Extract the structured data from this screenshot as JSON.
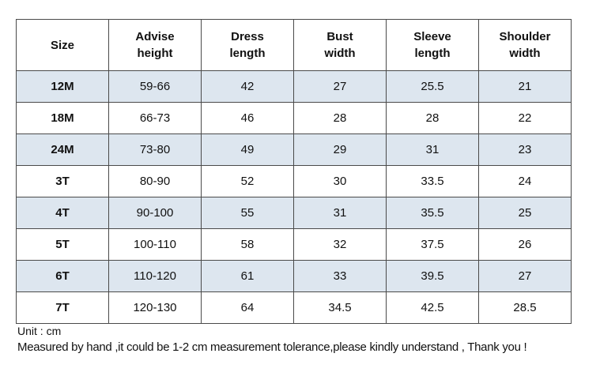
{
  "table": {
    "header": [
      "Size",
      "Advise height",
      "Dress length",
      "Bust width",
      "Sleeve length",
      "Shoulder width"
    ],
    "rows": [
      [
        "12M",
        "59-66",
        "42",
        "27",
        "25.5",
        "21"
      ],
      [
        "18M",
        "66-73",
        "46",
        "28",
        "28",
        "22"
      ],
      [
        "24M",
        "73-80",
        "49",
        "29",
        "31",
        "23"
      ],
      [
        "3T",
        "80-90",
        "52",
        "30",
        "33.5",
        "24"
      ],
      [
        "4T",
        "90-100",
        "55",
        "31",
        "35.5",
        "25"
      ],
      [
        "5T",
        "100-110",
        "58",
        "32",
        "37.5",
        "26"
      ],
      [
        "6T",
        "110-120",
        "61",
        "33",
        "39.5",
        "27"
      ],
      [
        "7T",
        "120-130",
        "64",
        "34.5",
        "42.5",
        "28.5"
      ]
    ]
  },
  "notes": [
    "Unit : cm",
    "Measured by hand ,it could be 1-2 cm measurement tolerance,please kindly understand , Thank you !"
  ]
}
